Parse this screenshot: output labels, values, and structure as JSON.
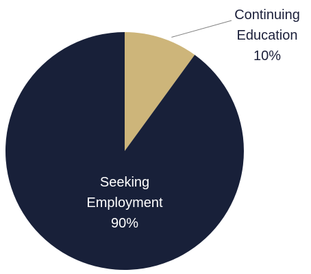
{
  "chart_data": {
    "type": "pie",
    "slices": [
      {
        "label_lines": [
          "Continuing",
          "Education"
        ],
        "percent_label": "10%",
        "value": 10,
        "color": "#CDB57A",
        "label_color": "#1B1F3A"
      },
      {
        "label_lines": [
          "Seeking",
          "Employment"
        ],
        "percent_label": "90%",
        "value": 90,
        "color": "#182039",
        "label_color": "#FFFFFF"
      }
    ],
    "start_angle": "12 o'clock",
    "direction": "clockwise",
    "legend": "none",
    "leader_line_color": "#808080"
  }
}
